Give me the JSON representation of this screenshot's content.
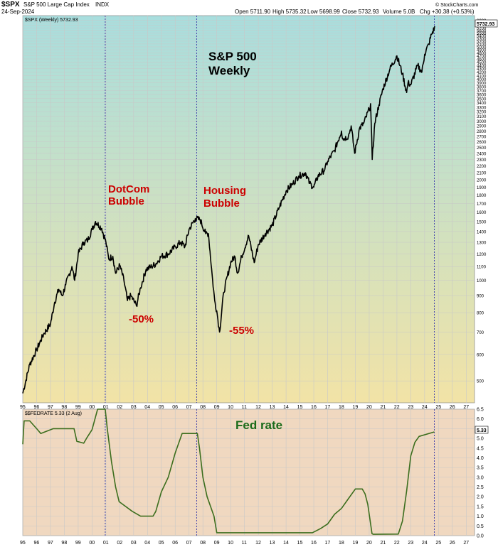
{
  "header": {
    "symbol": "$SPX",
    "name": "S&P 500 Large Cap Index",
    "exchange": "INDX",
    "date": "24-Sep-2024",
    "open": "Open 5711.90",
    "high": "High 5735.32",
    "low": "Low 5698.99",
    "close": "Close 5732.93",
    "volume": "Volume 5.0B",
    "chg": "Chg +30.38 (+0.53%)",
    "source": "© StockCharts.com"
  },
  "chart_data": [
    {
      "type": "line",
      "legend": "$SPX (Weekly) 5732.93",
      "last_value_tag": "5732.93",
      "scale": "log",
      "ylim": [
        430,
        6200
      ],
      "xlim": [
        1995.0,
        2027.6
      ],
      "y_ticks": [
        500,
        600,
        700,
        800,
        900,
        1000,
        1100,
        1200,
        1300,
        1400,
        1500,
        1600,
        1700,
        1800,
        1900,
        2000,
        2100,
        2200,
        2300,
        2400,
        2500,
        2600,
        2700,
        2800,
        2900,
        3000,
        3100,
        3200,
        3300,
        3400,
        3500,
        3600,
        3700,
        3800,
        3900,
        4000,
        4100,
        4200,
        4300,
        4400,
        4500,
        4600,
        4700,
        4800,
        4900,
        5000,
        5100,
        5200,
        5300,
        5400,
        5500,
        5600,
        5700,
        5800,
        5900,
        6000
      ],
      "x_tick_labels": [
        "95",
        "96",
        "97",
        "98",
        "99",
        "00",
        "01",
        "02",
        "03",
        "04",
        "05",
        "06",
        "07",
        "08",
        "09",
        "10",
        "11",
        "12",
        "13",
        "14",
        "15",
        "16",
        "17",
        "18",
        "19",
        "20",
        "21",
        "22",
        "23",
        "24",
        "25",
        "26",
        "27"
      ],
      "annotations": {
        "title_line1": "S&P 500",
        "title_line2": "Weekly",
        "dotcom_line1": "DotCom",
        "dotcom_line2": "Bubble",
        "housing_line1": "Housing",
        "housing_line2": "Bubble",
        "dotcom_drop": "-50%",
        "housing_drop": "-55%"
      },
      "markers_x": [
        2000.95,
        2007.55,
        2024.7
      ],
      "x": [
        1995.0,
        1995.5,
        1996.0,
        1996.5,
        1997.0,
        1997.3,
        1997.6,
        1997.85,
        1998.1,
        1998.55,
        1998.75,
        1999.0,
        1999.4,
        1999.7,
        2000.0,
        2000.25,
        2000.7,
        2001.0,
        2001.2,
        2001.5,
        2001.7,
        2002.0,
        2002.3,
        2002.55,
        2002.8,
        2003.2,
        2003.5,
        2003.9,
        2004.3,
        2004.6,
        2005.0,
        2005.5,
        2006.0,
        2006.4,
        2006.7,
        2007.0,
        2007.45,
        2007.8,
        2008.2,
        2008.4,
        2008.7,
        2008.85,
        2009.0,
        2009.2,
        2009.5,
        2010.0,
        2010.3,
        2010.5,
        2010.8,
        2011.3,
        2011.7,
        2012.0,
        2012.5,
        2013.0,
        2013.5,
        2014.0,
        2014.5,
        2014.9,
        2015.4,
        2015.7,
        2016.0,
        2016.3,
        2016.8,
        2017.0,
        2017.5,
        2018.0,
        2018.1,
        2018.5,
        2018.7,
        2018.95,
        2019.3,
        2019.6,
        2020.0,
        2020.1,
        2020.22,
        2020.4,
        2020.7,
        2021.0,
        2021.5,
        2022.0,
        2022.4,
        2022.7,
        2022.8,
        2023.0,
        2023.5,
        2023.8,
        2024.0,
        2024.3,
        2024.5,
        2024.75
      ],
      "y": [
        459,
        560,
        620,
        690,
        740,
        860,
        940,
        900,
        970,
        1100,
        1000,
        1200,
        1300,
        1320,
        1420,
        1500,
        1430,
        1300,
        1160,
        1180,
        1050,
        1110,
        1000,
        870,
        900,
        840,
        950,
        1080,
        1100,
        1120,
        1180,
        1200,
        1260,
        1300,
        1260,
        1420,
        1530,
        1520,
        1380,
        1380,
        1000,
        870,
        810,
        700,
        920,
        1130,
        1180,
        1050,
        1180,
        1360,
        1130,
        1280,
        1380,
        1460,
        1650,
        1850,
        1950,
        2050,
        2100,
        1950,
        1900,
        2050,
        2150,
        2270,
        2450,
        2800,
        2650,
        2700,
        2900,
        2400,
        2850,
        2950,
        3250,
        3380,
        2300,
        2950,
        3350,
        3750,
        4300,
        4700,
        4150,
        3650,
        3900,
        3850,
        4400,
        4200,
        4750,
        5100,
        5450,
        5732.93
      ]
    },
    {
      "type": "line",
      "legend": "$$FEDRATE 5.33 (2 Aug)",
      "last_value_tag": "5.33",
      "ylim": [
        0.0,
        6.5
      ],
      "xlim": [
        1995.0,
        2027.6
      ],
      "y_ticks": [
        0.0,
        0.5,
        1.0,
        1.5,
        2.0,
        2.5,
        3.0,
        3.5,
        4.0,
        4.5,
        5.0,
        5.5,
        6.0,
        6.5
      ],
      "x_tick_labels": [
        "95",
        "96",
        "97",
        "98",
        "99",
        "00",
        "01",
        "02",
        "03",
        "04",
        "05",
        "06",
        "07",
        "08",
        "09",
        "10",
        "11",
        "12",
        "13",
        "14",
        "15",
        "16",
        "17",
        "18",
        "19",
        "20",
        "21",
        "22",
        "23",
        "24",
        "25",
        "26",
        "27"
      ],
      "annotation": "Fed rate",
      "markers_x": [
        2000.95,
        2007.55,
        2024.7
      ],
      "x": [
        1995.0,
        1995.1,
        1995.5,
        1996.0,
        1996.3,
        1997.2,
        1998.7,
        1998.9,
        1999.4,
        1999.6,
        2000.0,
        2000.4,
        2000.95,
        2001.1,
        2001.4,
        2001.7,
        2001.95,
        2002.9,
        2003.5,
        2004.4,
        2004.6,
        2005.0,
        2005.5,
        2006.0,
        2006.5,
        2007.6,
        2007.75,
        2008.0,
        2008.3,
        2008.8,
        2009.0,
        2015.9,
        2016.5,
        2017.0,
        2017.5,
        2018.0,
        2018.5,
        2019.0,
        2019.5,
        2019.7,
        2019.9,
        2020.2,
        2020.3,
        2022.1,
        2022.4,
        2022.7,
        2023.0,
        2023.3,
        2023.6,
        2024.7
      ],
      "y": [
        4.7,
        5.9,
        5.9,
        5.5,
        5.25,
        5.5,
        5.5,
        4.85,
        4.75,
        5.0,
        5.45,
        6.5,
        6.5,
        5.5,
        3.8,
        2.5,
        1.75,
        1.25,
        1.0,
        1.0,
        1.25,
        2.25,
        3.0,
        4.25,
        5.25,
        5.25,
        4.5,
        3.0,
        2.0,
        1.0,
        0.15,
        0.15,
        0.37,
        0.6,
        1.1,
        1.4,
        1.9,
        2.4,
        2.4,
        2.15,
        1.6,
        0.1,
        0.07,
        0.08,
        0.75,
        2.3,
        4.1,
        4.8,
        5.1,
        5.33
      ]
    }
  ],
  "colors": {
    "spx_line": "#000000",
    "fed_line": "#3c6e1e",
    "marker_line": "#4444aa",
    "grid": "#c8c8c8",
    "top_panel_gradient": [
      "#a8dede",
      "#f2e3a6"
    ],
    "bottom_panel_bg": "#f0d8c0",
    "annotation_red": "#cc0000",
    "annotation_green": "#1a6b1a"
  }
}
